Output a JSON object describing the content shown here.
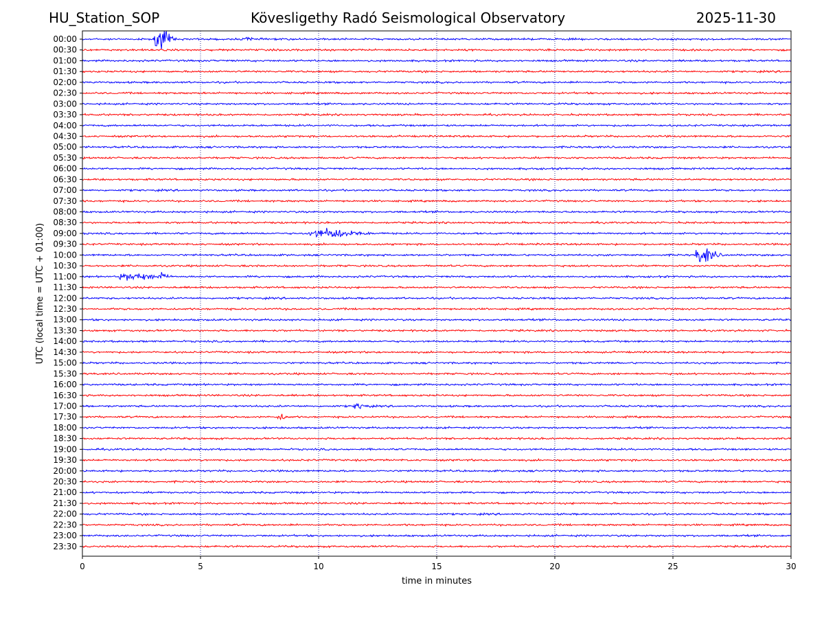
{
  "header": {
    "station": "HU_Station_SOP",
    "observatory": "Kövesligethy Radó Seismological Observatory",
    "date": "2025-11-30"
  },
  "chart_data": {
    "type": "line",
    "title": "Kövesligethy Radó Seismological Observatory",
    "xlabel": "time in minutes",
    "ylabel": "UTC (local time = UTC + 01:00)",
    "xlim": [
      0,
      30
    ],
    "xticks": [
      0,
      5,
      10,
      15,
      20,
      25,
      30
    ],
    "grid": "vertical dotted at 5-minute intervals",
    "colors": {
      "even_hour": "#0000ff",
      "half_hour": "#ff0000",
      "grid": "#000080"
    },
    "rows": [
      "00:00",
      "00:30",
      "01:00",
      "01:30",
      "02:00",
      "02:30",
      "03:00",
      "03:30",
      "04:00",
      "04:30",
      "05:00",
      "05:30",
      "06:00",
      "06:30",
      "07:00",
      "07:30",
      "08:00",
      "08:30",
      "09:00",
      "09:30",
      "10:00",
      "10:30",
      "11:00",
      "11:30",
      "12:00",
      "12:30",
      "13:00",
      "13:30",
      "14:00",
      "14:30",
      "15:00",
      "15:30",
      "16:00",
      "16:30",
      "17:00",
      "17:30",
      "18:00",
      "18:30",
      "19:00",
      "19:30",
      "20:00",
      "20:30",
      "21:00",
      "21:30",
      "22:00",
      "22:30",
      "23:00",
      "23:30"
    ],
    "noise_level": 1,
    "events": [
      {
        "row": "00:00",
        "t_minutes": 3.3,
        "amplitude": 9,
        "duration_min": 1.0
      },
      {
        "row": "00:00",
        "t_minutes": 7.0,
        "amplitude": 2.5,
        "duration_min": 0.4
      },
      {
        "row": "09:00",
        "t_minutes": 10.4,
        "amplitude": 4,
        "duration_min": 2.8
      },
      {
        "row": "10:00",
        "t_minutes": 26.3,
        "amplitude": 7,
        "duration_min": 1.2
      },
      {
        "row": "11:00",
        "t_minutes": 2.2,
        "amplitude": 3,
        "duration_min": 2.2
      },
      {
        "row": "11:00",
        "t_minutes": 3.3,
        "amplitude": 4,
        "duration_min": 0.5
      },
      {
        "row": "17:00",
        "t_minutes": 11.7,
        "amplitude": 2.5,
        "duration_min": 0.8
      },
      {
        "row": "17:30",
        "t_minutes": 8.4,
        "amplitude": 2.5,
        "duration_min": 0.6
      }
    ]
  }
}
